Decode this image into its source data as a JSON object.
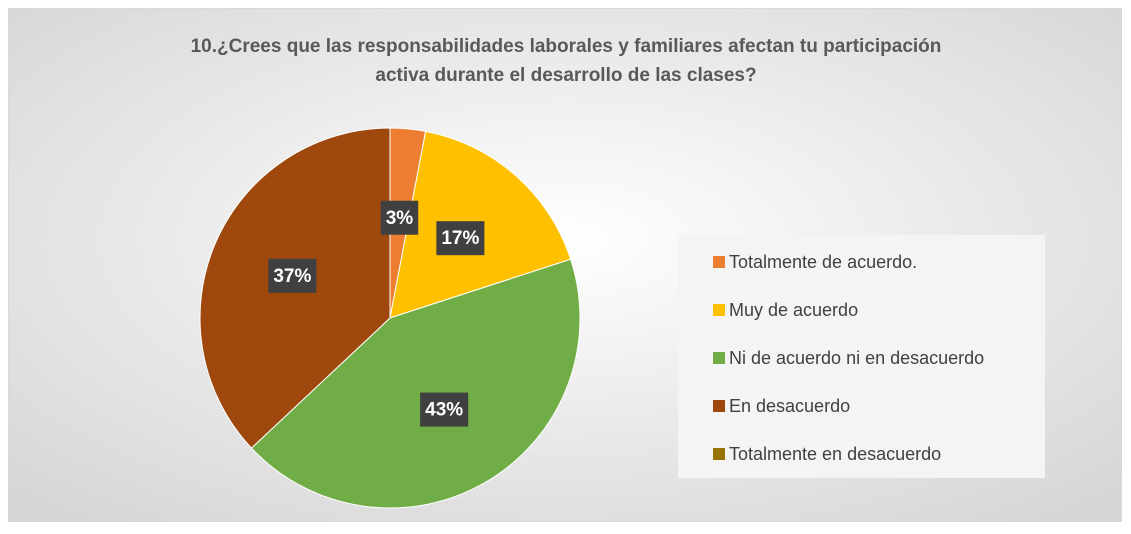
{
  "chart_data": {
    "type": "pie",
    "title": "10.¿Crees que las responsabilidades laborales y familiares afectan tu participación activa durante el desarrollo de las clases?",
    "categories": [
      "Totalmente de acuerdo.",
      "Muy de acuerdo",
      "Ni de acuerdo ni en desacuerdo",
      "En desacuerdo",
      "Totalmente en desacuerdo"
    ],
    "values": [
      3,
      17,
      43,
      37,
      0
    ],
    "value_labels": [
      "3%",
      "17%",
      "43%",
      "37%",
      null
    ],
    "colors": [
      "#ED7D31",
      "#FFC000",
      "#70AD47",
      "#9E480E",
      "#997300"
    ],
    "legend": "right"
  }
}
